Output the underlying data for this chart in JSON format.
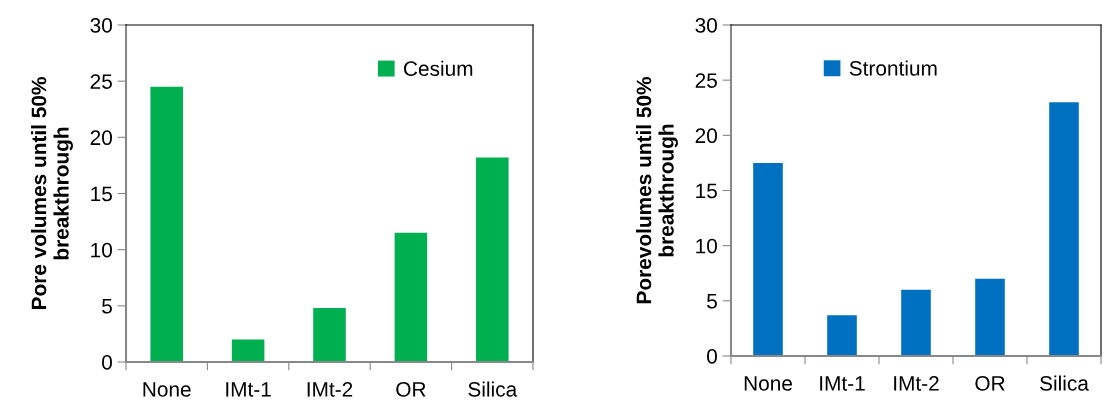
{
  "chart_data": [
    {
      "type": "bar",
      "ylabel": "Pore volumes until 50%\nbreakthrough",
      "categories": [
        "None",
        "IMt-1",
        "IMt-2",
        "OR",
        "Silica"
      ],
      "series": [
        {
          "name": "Cesium",
          "color": "#00b050",
          "values": [
            24.5,
            2.0,
            4.8,
            11.5,
            18.2
          ]
        }
      ],
      "ylim": [
        0,
        30
      ],
      "yticks": [
        0,
        5,
        10,
        15,
        20,
        25,
        30
      ],
      "grid": false,
      "legend": "top right"
    },
    {
      "type": "bar",
      "ylabel": "Porevolumes until 50%\nbreakthrough",
      "categories": [
        "None",
        "IMt-1",
        "IMt-2",
        "OR",
        "Silica"
      ],
      "series": [
        {
          "name": "Strontium",
          "color": "#0070c0",
          "values": [
            17.5,
            3.7,
            6.0,
            7.0,
            23.0
          ]
        }
      ],
      "ylim": [
        0,
        30
      ],
      "yticks": [
        0,
        5,
        10,
        15,
        20,
        25,
        30
      ],
      "grid": false,
      "legend": "top left"
    }
  ]
}
